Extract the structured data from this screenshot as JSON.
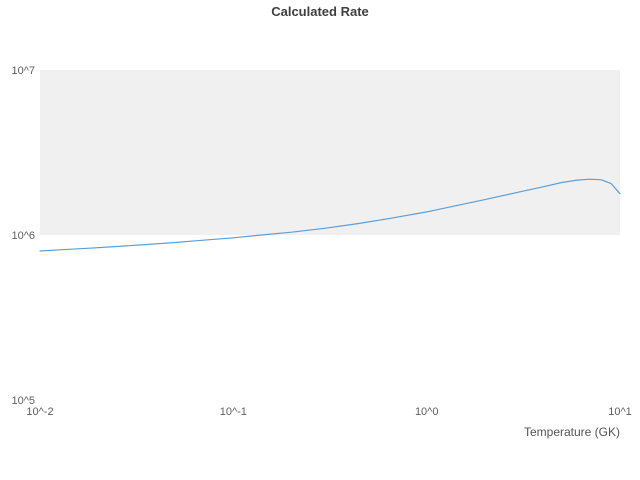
{
  "chart_data": {
    "type": "line",
    "title": "Calculated Rate",
    "xlabel": "Temperature (GK)",
    "ylabel": "",
    "xscale": "log",
    "yscale": "log",
    "xlim": [
      0.01,
      10
    ],
    "ylim": [
      100000,
      10000000
    ],
    "grid": false,
    "legend": "none",
    "x_ticks": [
      {
        "value": 0.01,
        "label": "10^-2"
      },
      {
        "value": 0.1,
        "label": "10^-1"
      },
      {
        "value": 1,
        "label": "10^0"
      },
      {
        "value": 10,
        "label": "10^1"
      }
    ],
    "y_ticks": [
      {
        "value": 100000,
        "label": "10^5"
      },
      {
        "value": 1000000,
        "label": "10^6"
      },
      {
        "value": 10000000,
        "label": "10^7"
      }
    ],
    "shaded_band": {
      "from": 1000000,
      "to": 10000000,
      "color": "#f0f0f0"
    },
    "series": [
      {
        "name": "calculated-rate",
        "color": "#5b9fd6",
        "x": [
          0.01,
          0.013,
          0.018,
          0.025,
          0.035,
          0.05,
          0.07,
          0.1,
          0.14,
          0.2,
          0.3,
          0.45,
          0.65,
          1.0,
          1.4,
          2.0,
          3.0,
          4.0,
          5.0,
          6.0,
          7.0,
          8.0,
          9.0,
          10.0
        ],
        "y": [
          800000,
          815000,
          832000,
          852000,
          875000,
          900000,
          930000,
          962000,
          1000000,
          1040000,
          1100000,
          1175000,
          1262000,
          1380000,
          1500000,
          1640000,
          1820000,
          1960000,
          2080000,
          2150000,
          2180000,
          2160000,
          2050000,
          1780000
        ]
      }
    ]
  }
}
